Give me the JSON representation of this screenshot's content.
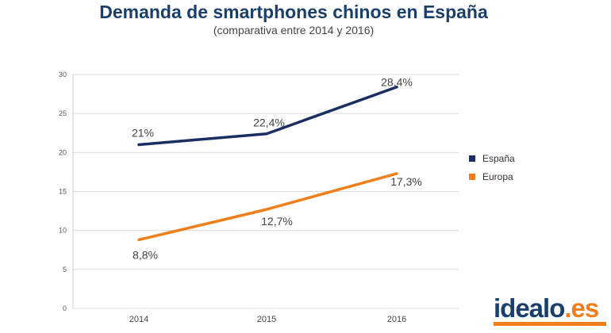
{
  "title": "Demanda de smartphones chinos en España",
  "subtitle": "(comparativa entre 2014 y 2016)",
  "chart_data": {
    "type": "line",
    "categories": [
      "2014",
      "2015",
      "2016"
    ],
    "ylim": [
      0,
      30
    ],
    "yticks": [
      0,
      5,
      10,
      15,
      20,
      25,
      30
    ],
    "grid": true,
    "legend": "right",
    "series": [
      {
        "name": "España",
        "values": [
          21,
          22.4,
          28.4
        ],
        "labels": [
          "21%",
          "22,4%",
          "28,4%"
        ],
        "color": "#1b2f63"
      },
      {
        "name": "Europa",
        "values": [
          8.8,
          12.7,
          17.3
        ],
        "labels": [
          "8,8%",
          "12,7%",
          "17,3%"
        ],
        "color": "#f07e1a"
      }
    ]
  },
  "logo": {
    "name": "idealo",
    "dot": ".",
    "tld": "es",
    "brand_color": "#1b3f6b",
    "accent_color": "#f07e1a"
  }
}
